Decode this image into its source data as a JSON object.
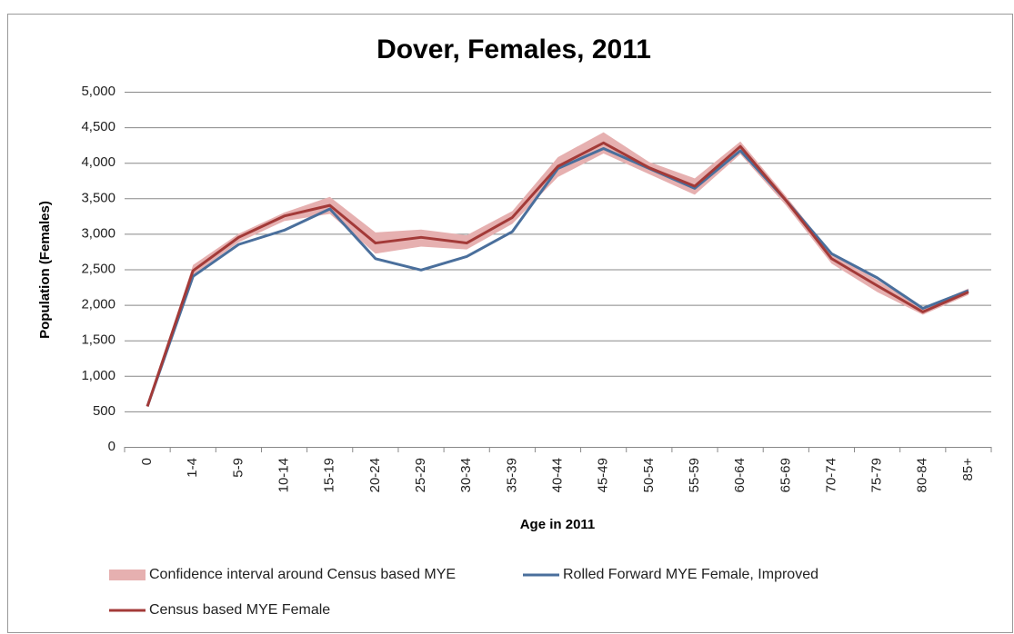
{
  "chart_data": {
    "type": "line",
    "title": "Dover, Females, 2011",
    "x_label": "Age in 2011",
    "y_label": "Population (Females)",
    "categories": [
      "0",
      "1-4",
      "5-9",
      "10-14",
      "15-19",
      "20-24",
      "25-29",
      "30-34",
      "35-39",
      "40-44",
      "45-49",
      "50-54",
      "55-59",
      "60-64",
      "65-69",
      "70-74",
      "75-79",
      "80-84",
      "85+"
    ],
    "ylim": [
      0,
      5000
    ],
    "yticks": [
      0,
      500,
      {
        "value": 1000,
        "label": "1,000"
      },
      {
        "value": 1500,
        "label": "1,500"
      },
      {
        "value": 2000,
        "label": "2,000"
      },
      {
        "value": 2500,
        "label": "2,500"
      },
      {
        "value": 3000,
        "label": "3,000"
      },
      {
        "value": 3500,
        "label": "3,500"
      },
      {
        "value": 4000,
        "label": "4,000"
      },
      {
        "value": 4500,
        "label": "4,500"
      },
      {
        "value": 5000,
        "label": "5,000"
      }
    ],
    "grid": true,
    "legend": "bottom",
    "series": [
      {
        "name": "Confidence interval around Census based MYE",
        "color": "#e6b0b0",
        "lower": [
          560,
          2420,
          2880,
          3180,
          3280,
          2720,
          2820,
          2780,
          3140,
          3800,
          4130,
          3840,
          3550,
          4120,
          3400,
          2580,
          2180,
          1860,
          2140
        ],
        "upper": [
          580,
          2560,
          3000,
          3300,
          3520,
          3020,
          3060,
          2980,
          3320,
          4080,
          4430,
          4010,
          3780,
          4300,
          3530,
          2720,
          2350,
          1950,
          2230
        ]
      },
      {
        "name": "Rolled Forward MYE Female, Improved",
        "color": "#4a6f9c",
        "values": [
          570,
          2400,
          2850,
          3050,
          3350,
          2650,
          2490,
          2680,
          3030,
          3920,
          4200,
          3920,
          3640,
          4170,
          3470,
          2720,
          2380,
          1950,
          2200
        ]
      },
      {
        "name": "Census based  MYE Female",
        "color": "#a33a38",
        "values": [
          570,
          2480,
          2950,
          3250,
          3400,
          2870,
          2950,
          2870,
          3230,
          3950,
          4280,
          3930,
          3670,
          4230,
          3470,
          2650,
          2270,
          1900,
          2180
        ]
      }
    ]
  }
}
